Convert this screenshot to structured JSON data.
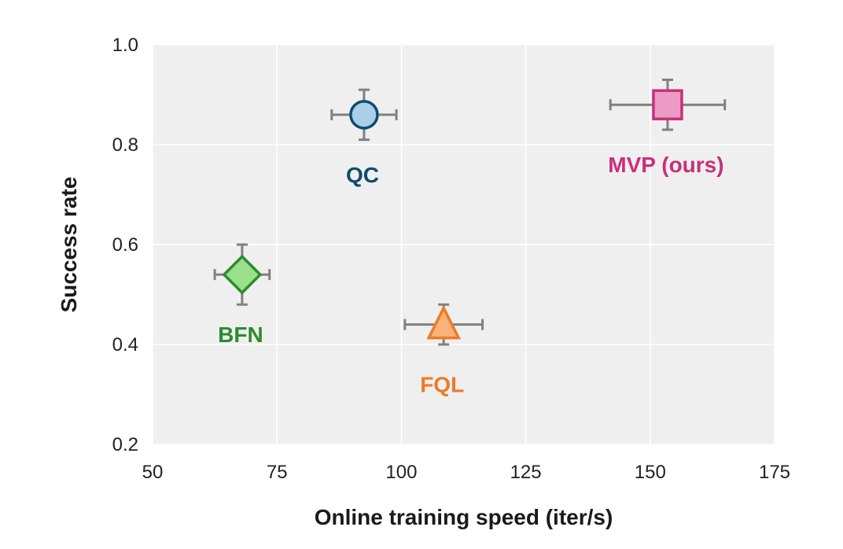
{
  "chart_data": {
    "type": "scatter",
    "title": "",
    "xlabel": "Online training speed (iter/s)",
    "ylabel": "Success rate",
    "xlim": [
      50,
      175
    ],
    "ylim": [
      0.2,
      1.0
    ],
    "xticks": [
      "50",
      "75",
      "100",
      "125",
      "150",
      "175"
    ],
    "yticks": [
      "0.2",
      "0.4",
      "0.6",
      "0.8",
      "1.0"
    ],
    "xtick_values": [
      50,
      75,
      100,
      125,
      150,
      175
    ],
    "ytick_values": [
      0.2,
      0.4,
      0.6,
      0.8,
      1.0
    ],
    "grid": true,
    "points": [
      {
        "label": "QC",
        "x": 92.5,
        "y": 0.86,
        "xerr": 6.5,
        "yerr": 0.05,
        "marker": "circle",
        "color": "#0f4c6e",
        "fill": "#a9cfe9",
        "label_pos": "below"
      },
      {
        "label": "MVP (ours)",
        "x": 153.5,
        "y": 0.88,
        "xerr": 11.5,
        "yerr": 0.05,
        "marker": "square",
        "color": "#c8307a",
        "fill": "#ec9cc4",
        "label_pos": "below"
      },
      {
        "label": "BFN",
        "x": 68,
        "y": 0.54,
        "xerr": 5.5,
        "yerr": 0.06,
        "marker": "diamond",
        "color": "#2e8b2e",
        "fill": "#9adf8a",
        "label_pos": "below"
      },
      {
        "label": "FQL",
        "x": 108.5,
        "y": 0.44,
        "xerr": 7.8,
        "yerr": 0.04,
        "marker": "triangle",
        "color": "#ee7a26",
        "fill": "#f9b27a",
        "label_pos": "below"
      }
    ],
    "colors": {
      "plot_bg": "#efefef",
      "grid": "#ffffff",
      "errorbar": "#808080"
    }
  }
}
